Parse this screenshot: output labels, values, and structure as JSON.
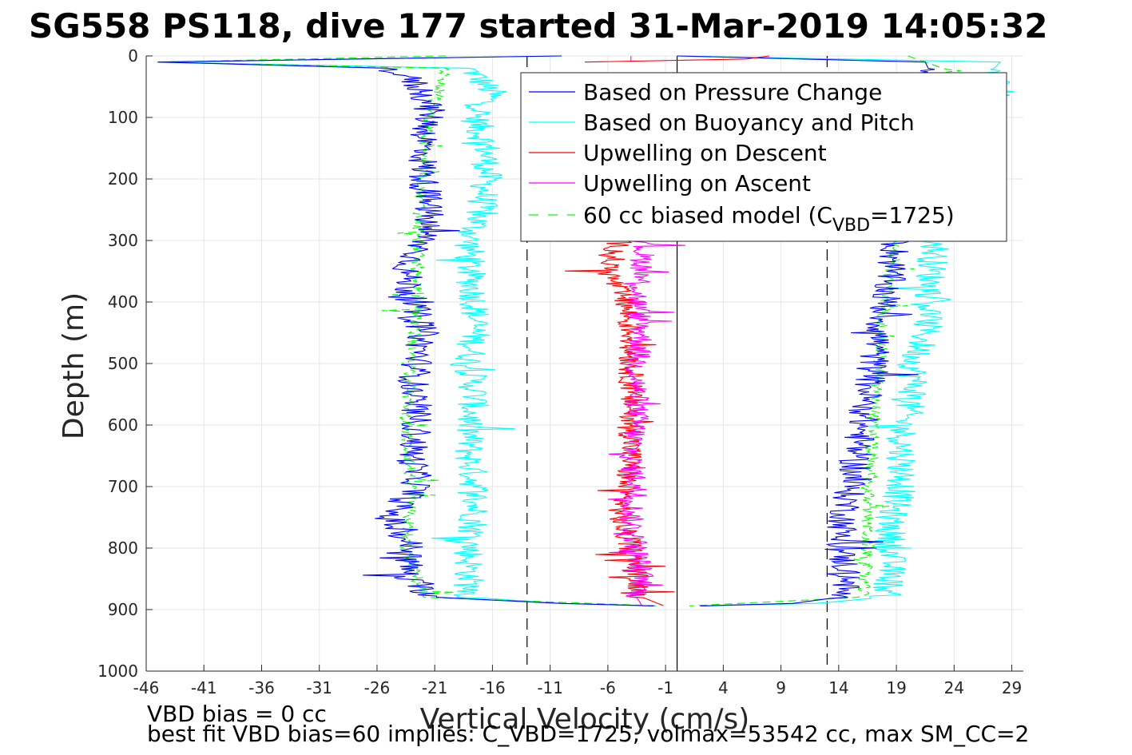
{
  "chart_data": {
    "type": "line",
    "title": "SG558 PS118, dive 177 started 31-Mar-2019 14:05:32",
    "xlabel": "Vertical Velocity (cm/s)",
    "ylabel": "Depth (m)",
    "xlim": [
      -46,
      30
    ],
    "ylim": [
      0,
      1000
    ],
    "y_reversed": true,
    "xticks": [
      -46,
      -41,
      -36,
      -31,
      -26,
      -21,
      -16,
      -11,
      -6,
      -1,
      4,
      9,
      14,
      19,
      24,
      29
    ],
    "yticks": [
      0,
      100,
      200,
      300,
      400,
      500,
      600,
      700,
      800,
      900,
      1000
    ],
    "grid": true,
    "legend_position": "top-right",
    "reference_lines": [
      {
        "x": -13,
        "style": "dashed",
        "color": "#000000"
      },
      {
        "x": 0,
        "style": "solid",
        "color": "#000000"
      },
      {
        "x": 13,
        "style": "dashed",
        "color": "#000000"
      }
    ],
    "legend": [
      {
        "label": "Based on Pressure Change",
        "color": "#0000ff",
        "style": "solid"
      },
      {
        "label": "Based on Buoyancy and Pitch",
        "color": "#00ffff",
        "style": "solid"
      },
      {
        "label": "Upwelling on Descent",
        "color": "#ff0000",
        "style": "solid"
      },
      {
        "label": "Upwelling on Ascent",
        "color": "#ff00ff",
        "style": "solid"
      },
      {
        "label_main": "60 cc biased model (C",
        "label_sub": "VBD",
        "label_end": "=1725)",
        "color": "#00ff00",
        "style": "dashed"
      }
    ],
    "series": [
      {
        "color": "#0000ff",
        "values": {
          "descent_depth": [
            0,
            10,
            20,
            40,
            60,
            80,
            100,
            150,
            200,
            250,
            300,
            350,
            400,
            450,
            500,
            550,
            600,
            650,
            700,
            750,
            800,
            850,
            880,
            890,
            895
          ],
          "descent_velocity": [
            -10,
            -45,
            -25,
            -23,
            -22,
            -21.5,
            -21.5,
            -22,
            -22,
            -21.5,
            -22,
            -23.5,
            -23,
            -22,
            -22.5,
            -23,
            -22.5,
            -23,
            -22.5,
            -25,
            -23,
            -23.5,
            -21,
            -10,
            0
          ],
          "ascent_depth": [
            895,
            890,
            880,
            850,
            800,
            750,
            700,
            650,
            600,
            550,
            500,
            450,
            400,
            350,
            300,
            250,
            200,
            150,
            100,
            60,
            30,
            10,
            0
          ],
          "ascent_velocity": [
            0,
            10,
            14,
            15,
            14,
            14.5,
            15,
            15.5,
            16,
            16.5,
            17,
            17.5,
            18,
            18.5,
            19,
            19.5,
            20,
            20.5,
            21,
            21.5,
            22,
            21.5,
            0
          ]
        }
      },
      {
        "color": "#00ffff",
        "values": {
          "descent_depth": [
            0,
            10,
            20,
            40,
            60,
            100,
            150,
            200,
            250,
            300,
            350,
            400,
            450,
            500,
            550,
            600,
            650,
            700,
            750,
            800,
            850,
            880,
            890,
            895
          ],
          "descent_velocity": [
            -10,
            -45,
            -18,
            -17,
            -16,
            -17.5,
            -16.5,
            -16.5,
            -17,
            -18,
            -18,
            -17.5,
            -17.5,
            -18,
            -17.5,
            -18,
            -18,
            -17.5,
            -17.5,
            -18,
            -18,
            -18,
            -10,
            0
          ],
          "ascent_depth": [
            895,
            890,
            880,
            850,
            800,
            750,
            700,
            650,
            600,
            550,
            500,
            450,
            400,
            350,
            300,
            250,
            200,
            150,
            100,
            60,
            30,
            10,
            0
          ],
          "ascent_velocity": [
            0,
            12,
            18,
            18.5,
            18.5,
            18.5,
            19.5,
            19.5,
            19.5,
            20.5,
            20.5,
            21.5,
            22,
            22,
            22.5,
            23,
            23.5,
            24.5,
            25,
            28,
            27,
            28,
            0
          ]
        }
      },
      {
        "color": "#ff0000",
        "values": {
          "depth": [
            0,
            5,
            10,
            300,
            350,
            400,
            450,
            500,
            550,
            600,
            650,
            700,
            750,
            800,
            850,
            880,
            895
          ],
          "velocity": [
            8,
            6,
            -8,
            -5,
            -6,
            -4.5,
            -4,
            -4,
            -4,
            -4,
            -4,
            -4.5,
            -5,
            -4,
            -3.5,
            -3,
            -1
          ]
        }
      },
      {
        "color": "#ff00ff",
        "values": {
          "depth": [
            0,
            5,
            10,
            300,
            350,
            400,
            450,
            500,
            550,
            600,
            650,
            700,
            750,
            800,
            850,
            880,
            895
          ],
          "velocity": [
            -4,
            -4,
            -4,
            -3,
            -3,
            -3.5,
            -3,
            -3.5,
            -3.5,
            -3.5,
            -4,
            -3.5,
            -4,
            -3.5,
            -3,
            -3.5,
            -3
          ]
        }
      },
      {
        "color": "#00ff00",
        "dashed": true,
        "values": {
          "descent_depth": [
            0,
            10,
            20,
            100,
            200,
            300,
            400,
            500,
            600,
            700,
            800,
            880,
            895
          ],
          "descent_velocity": [
            -20,
            -45,
            -20,
            -21.5,
            -22,
            -22.5,
            -22.5,
            -23,
            -23.5,
            -23,
            -23.5,
            -22,
            0
          ],
          "ascent_depth": [
            895,
            880,
            800,
            700,
            600,
            500,
            400,
            300,
            200,
            100,
            20,
            0
          ],
          "ascent_velocity": [
            0,
            16,
            16.5,
            16.5,
            17,
            17.5,
            18,
            19,
            20,
            21,
            23,
            20
          ]
        }
      }
    ]
  },
  "footer": {
    "line1": "VBD bias = 0 cc",
    "line2": "best fit VBD bias=60 implies: C_VBD=1725, volmax=53542 cc, max SM_CC=2"
  }
}
